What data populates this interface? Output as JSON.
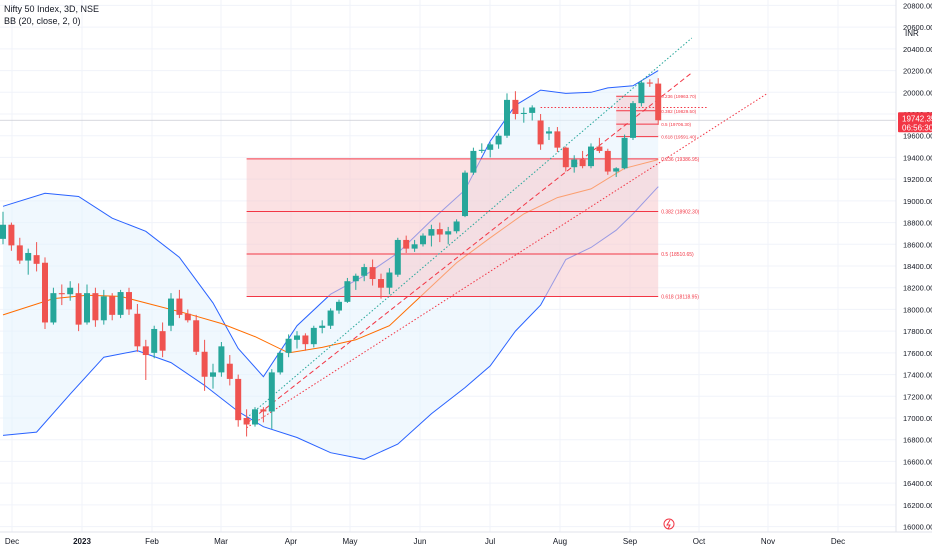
{
  "header": {
    "symbol": "Nifty 50 Index, 3D, NSE",
    "indicator": "BB (20, close, 2, 0)"
  },
  "price_axis": {
    "currency": "INR",
    "last_price": "19742.35",
    "countdown": "06:56:30"
  },
  "colors": {
    "up": "#26a69a",
    "down": "#ef5350",
    "bb_band": "#2962ff",
    "bb_basis": "#ff6d00",
    "bb_fill": "#e3f2fd",
    "fib_zone": "#f8c9cc",
    "fib_line": "#f23645",
    "grid": "#f0f3fa",
    "axis_text": "#131722"
  },
  "chart_data": {
    "type": "candlestick",
    "x_axis_labels": [
      "Dec",
      "2023",
      "Feb",
      "Mar",
      "Apr",
      "May",
      "Jun",
      "Jul",
      "Aug",
      "Sep",
      "Oct",
      "Nov",
      "Dec"
    ],
    "y_ticks": [
      16000,
      16200,
      16400,
      16600,
      16800,
      17000,
      17200,
      17400,
      17600,
      17800,
      18000,
      18200,
      18400,
      18600,
      18800,
      19000,
      19200,
      19400,
      19600,
      19800,
      20000,
      20200,
      20400,
      20600,
      20800
    ],
    "y_range": [
      15950,
      20850
    ],
    "candles": [
      [
        0,
        18650,
        18900,
        18600,
        18780
      ],
      [
        1,
        18780,
        18800,
        18540,
        18590
      ],
      [
        2,
        18590,
        18660,
        18420,
        18450
      ],
      [
        3,
        18450,
        18560,
        18320,
        18520
      ],
      [
        4,
        18500,
        18620,
        18350,
        18420
      ],
      [
        5,
        18430,
        18480,
        17820,
        17880
      ],
      [
        6,
        17880,
        18200,
        17860,
        18150
      ],
      [
        7,
        18150,
        18230,
        18040,
        18140
      ],
      [
        8,
        18140,
        18260,
        18080,
        18200
      ],
      [
        9,
        18150,
        18240,
        17800,
        17860
      ],
      [
        10,
        17880,
        18230,
        17860,
        18150
      ],
      [
        11,
        18150,
        18200,
        17840,
        17900
      ],
      [
        12,
        17900,
        18180,
        17860,
        18120
      ],
      [
        13,
        18120,
        18150,
        17900,
        17950
      ],
      [
        14,
        17950,
        18180,
        17920,
        18160
      ],
      [
        15,
        18160,
        18200,
        17950,
        18000
      ],
      [
        16,
        17960,
        18050,
        17610,
        17660
      ],
      [
        17,
        17660,
        17720,
        17350,
        17580
      ],
      [
        18,
        17600,
        17850,
        17550,
        17820
      ],
      [
        19,
        17800,
        17880,
        17560,
        17620
      ],
      [
        20,
        17850,
        18150,
        17800,
        18100
      ],
      [
        21,
        18100,
        18180,
        17920,
        17950
      ],
      [
        22,
        17960,
        18000,
        17880,
        17900
      ],
      [
        23,
        17900,
        17950,
        17580,
        17610
      ],
      [
        24,
        17610,
        17720,
        17250,
        17380
      ],
      [
        25,
        17380,
        17500,
        17270,
        17420
      ],
      [
        26,
        17420,
        17700,
        17380,
        17660
      ],
      [
        27,
        17500,
        17580,
        17300,
        17360
      ],
      [
        28,
        17360,
        17400,
        16920,
        16980
      ],
      [
        29,
        17000,
        17080,
        16830,
        16940
      ],
      [
        30,
        16940,
        17100,
        16920,
        17080
      ],
      [
        31,
        17080,
        17100,
        16960,
        17060
      ],
      [
        32,
        17060,
        17450,
        16900,
        17420
      ],
      [
        33,
        17420,
        17620,
        17400,
        17600
      ],
      [
        34,
        17600,
        17770,
        17560,
        17730
      ],
      [
        35,
        17720,
        17800,
        17640,
        17760
      ],
      [
        36,
        17760,
        17780,
        17620,
        17680
      ],
      [
        37,
        17680,
        17850,
        17650,
        17830
      ],
      [
        38,
        17830,
        17900,
        17780,
        17850
      ],
      [
        39,
        17850,
        18010,
        17820,
        17990
      ],
      [
        40,
        17990,
        18090,
        17960,
        18070
      ],
      [
        41,
        18070,
        18290,
        18060,
        18260
      ],
      [
        42,
        18260,
        18330,
        18180,
        18310
      ],
      [
        43,
        18310,
        18420,
        18260,
        18390
      ],
      [
        44,
        18390,
        18460,
        18220,
        18280
      ],
      [
        45,
        18280,
        18330,
        18100,
        18200
      ],
      [
        46,
        18200,
        18380,
        18140,
        18340
      ],
      [
        47,
        18320,
        18660,
        18300,
        18640
      ],
      [
        48,
        18640,
        18680,
        18520,
        18560
      ],
      [
        49,
        18560,
        18640,
        18530,
        18600
      ],
      [
        50,
        18600,
        18700,
        18580,
        18680
      ],
      [
        51,
        18680,
        18780,
        18580,
        18740
      ],
      [
        52,
        18740,
        18800,
        18620,
        18690
      ],
      [
        53,
        18690,
        18760,
        18600,
        18720
      ],
      [
        54,
        18720,
        18830,
        18700,
        18810
      ],
      [
        55,
        18860,
        19280,
        18850,
        19260
      ],
      [
        56,
        19260,
        19490,
        19240,
        19460
      ],
      [
        57,
        19460,
        19530,
        19440,
        19470
      ],
      [
        58,
        19470,
        19540,
        19400,
        19520
      ],
      [
        59,
        19520,
        19620,
        19480,
        19600
      ],
      [
        60,
        19600,
        19990,
        19580,
        19930
      ],
      [
        61,
        19930,
        20010,
        19750,
        19800
      ],
      [
        62,
        19800,
        19860,
        19720,
        19810
      ],
      [
        63,
        19810,
        19880,
        19740,
        19860
      ],
      [
        64,
        19740,
        19800,
        19470,
        19520
      ],
      [
        65,
        19620,
        19680,
        19560,
        19640
      ],
      [
        66,
        19640,
        19680,
        19450,
        19490
      ],
      [
        67,
        19490,
        19500,
        19270,
        19310
      ],
      [
        68,
        19310,
        19420,
        19260,
        19380
      ],
      [
        69,
        19380,
        19460,
        19300,
        19320
      ],
      [
        70,
        19320,
        19530,
        19300,
        19500
      ],
      [
        71,
        19500,
        19580,
        19440,
        19460
      ],
      [
        72,
        19460,
        19480,
        19240,
        19270
      ],
      [
        73,
        19270,
        19310,
        19220,
        19300
      ],
      [
        74,
        19300,
        19610,
        19290,
        19580
      ],
      [
        75,
        19580,
        19920,
        19560,
        19900
      ],
      [
        76,
        19900,
        20110,
        19870,
        20090
      ],
      [
        77,
        20090,
        20120,
        20050,
        20080
      ],
      [
        78,
        20080,
        20130,
        19700,
        19742.35
      ]
    ],
    "bollinger": {
      "basis": [
        [
          0,
          17950
        ],
        [
          6,
          18100
        ],
        [
          10,
          18130
        ],
        [
          14,
          18120
        ],
        [
          18,
          18040
        ],
        [
          22,
          17960
        ],
        [
          26,
          17870
        ],
        [
          30,
          17750
        ],
        [
          34,
          17600
        ],
        [
          38,
          17650
        ],
        [
          42,
          17720
        ],
        [
          46,
          17850
        ],
        [
          50,
          18140
        ],
        [
          54,
          18430
        ],
        [
          58,
          18660
        ],
        [
          62,
          18880
        ],
        [
          66,
          19030
        ],
        [
          70,
          19110
        ],
        [
          74,
          19300
        ],
        [
          78,
          19380
        ]
      ],
      "upper": [
        [
          0,
          18950
        ],
        [
          5,
          19070
        ],
        [
          9,
          19040
        ],
        [
          13,
          18840
        ],
        [
          17,
          18720
        ],
        [
          21,
          18480
        ],
        [
          25,
          18060
        ],
        [
          28,
          17640
        ],
        [
          31,
          17380
        ],
        [
          35,
          17850
        ],
        [
          39,
          18140
        ],
        [
          43,
          18310
        ],
        [
          47,
          18520
        ],
        [
          51,
          18820
        ],
        [
          55,
          19100
        ],
        [
          58,
          19550
        ],
        [
          61,
          19880
        ],
        [
          64,
          20020
        ],
        [
          67,
          19990
        ],
        [
          70,
          20000
        ],
        [
          72,
          20040
        ],
        [
          75,
          20060
        ],
        [
          78,
          20200
        ]
      ],
      "lower": [
        [
          0,
          16840
        ],
        [
          4,
          16870
        ],
        [
          8,
          17220
        ],
        [
          12,
          17560
        ],
        [
          16,
          17620
        ],
        [
          20,
          17510
        ],
        [
          24,
          17300
        ],
        [
          28,
          17060
        ],
        [
          31,
          16920
        ],
        [
          35,
          16820
        ],
        [
          39,
          16680
        ],
        [
          43,
          16620
        ],
        [
          47,
          16760
        ],
        [
          51,
          17040
        ],
        [
          55,
          17280
        ],
        [
          58,
          17480
        ],
        [
          61,
          17800
        ],
        [
          64,
          18040
        ],
        [
          67,
          18460
        ],
        [
          70,
          18570
        ],
        [
          73,
          18730
        ],
        [
          75,
          18880
        ],
        [
          78,
          19130
        ]
      ]
    },
    "fibonacci_large": {
      "start_index": 29,
      "end_index": 78,
      "levels": [
        {
          "label": "0.236 (19386.95)",
          "value": 19386.95
        },
        {
          "label": "0.382 (18902.30)",
          "value": 18902.3
        },
        {
          "label": "0.5 (18510.65)",
          "value": 18510.65
        },
        {
          "label": "0.618 (18118.95)",
          "value": 18118.95
        }
      ]
    },
    "fibonacci_small": {
      "start_index": 73,
      "end_index": 78,
      "levels": [
        {
          "label": "0.236 (19963.70)",
          "value": 19963.7
        },
        {
          "label": "0.382 (19829.50)",
          "value": 19829.5
        },
        {
          "label": "0.5 (19706.30)",
          "value": 19706.3
        },
        {
          "label": "0.618 (19591.40)",
          "value": 19591.4
        }
      ]
    },
    "trendlines": [
      {
        "style": "dotted",
        "color": "#26a69a",
        "from": [
          29,
          17000
        ],
        "to": [
          82,
          20500
        ]
      },
      {
        "style": "dashed",
        "color": "#f23645",
        "from": [
          29,
          16950
        ],
        "to": [
          82,
          20180
        ]
      },
      {
        "style": "dotted",
        "color": "#f23645",
        "from": [
          29,
          16910
        ],
        "to": [
          91,
          19990
        ]
      },
      {
        "style": "dotted",
        "color": "#f23645",
        "from": [
          64,
          19860
        ],
        "to": [
          84,
          19860
        ]
      }
    ]
  }
}
